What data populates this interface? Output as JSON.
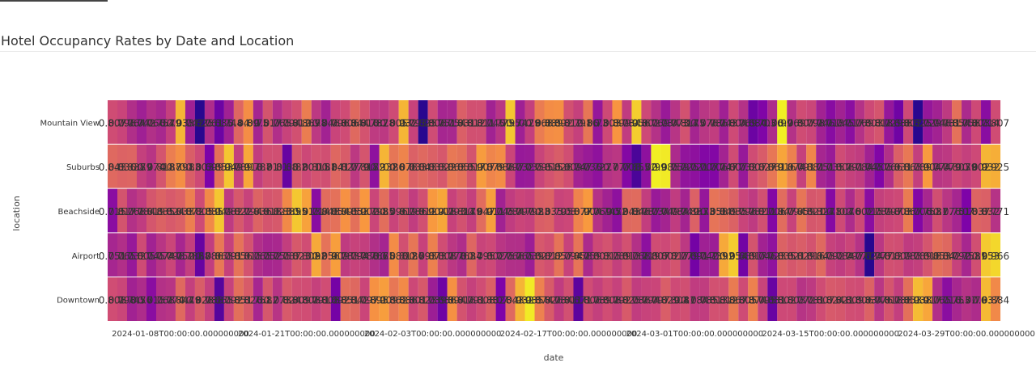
{
  "page": {
    "title": "Hotel Occupancy Rates by Date and Location"
  },
  "chart_data": {
    "type": "heatmap",
    "title": "Hotel Occupancy Rates by Date and Location",
    "xlabel": "date",
    "ylabel": "location",
    "colorscale": "plasma",
    "colors": [
      "#0d0887",
      "#7e03a8",
      "#cc4778",
      "#f89540",
      "#f0f921"
    ],
    "zlim": [
      0.6,
      1.0
    ],
    "grid": false,
    "legend": "none",
    "start_date": "2024-01-01",
    "end_date": "2024-03-31",
    "x_tick_labels": [
      "2024-01-08T00:00:00.000000000",
      "2024-01-21T00:00:00.000000000",
      "2024-02-03T00:00:00.000000000",
      "2024-02-17T00:00:00.000000000",
      "2024-03-01T00:00:00.000000000",
      "2024-03-15T00:00:00.000000000",
      "2024-03-29T00:00:00.000000000"
    ],
    "rows": [
      {
        "location": "Mountain View",
        "values": [
          0.807,
          0.796,
          0.764,
          0.742,
          0.766,
          0.754,
          0.79,
          0.933,
          0.742,
          0.625,
          0.761,
          0.685,
          0.744,
          0.84,
          0.89,
          0.75,
          0.817,
          0.765,
          0.794,
          0.812,
          0.869,
          0.78,
          0.746,
          0.796,
          0.806,
          0.844,
          0.816,
          0.782,
          0.78,
          0.805,
          0.932,
          0.793,
          0.625,
          0.806,
          0.751,
          0.754,
          0.831,
          0.812,
          0.811,
          0.745,
          0.775,
          0.95,
          0.742,
          0.79,
          0.868,
          0.889,
          0.892,
          0.812,
          0.791,
          0.86,
          0.73,
          0.803,
          0.899,
          0.784,
          0.956,
          0.802,
          0.769,
          0.734,
          0.773,
          0.814,
          0.75,
          0.776,
          0.786,
          0.743,
          0.804,
          0.769,
          0.684,
          0.703,
          0.76,
          0.99,
          0.769,
          0.807,
          0.798,
          0.746,
          0.713,
          0.745,
          0.717,
          0.769,
          0.803,
          0.818,
          0.729,
          0.688,
          0.802,
          0.625,
          0.729,
          0.746,
          0.781,
          0.854,
          0.758,
          0.803,
          0.714,
          0.807
        ]
      },
      {
        "location": "Suburbs",
        "values": [
          0.843,
          0.836,
          0.838,
          0.79,
          0.774,
          0.818,
          0.87,
          0.891,
          0.83,
          0.803,
          0.699,
          0.853,
          0.949,
          0.789,
          0.918,
          0.787,
          0.81,
          0.81,
          0.68,
          0.82,
          0.801,
          0.815,
          0.81,
          0.841,
          0.827,
          0.779,
          0.818,
          0.72,
          0.932,
          0.86,
          0.878,
          0.833,
          0.843,
          0.833,
          0.822,
          0.863,
          0.855,
          0.817,
          0.907,
          0.879,
          0.888,
          0.797,
          0.732,
          0.735,
          0.795,
          0.815,
          0.828,
          0.809,
          0.747,
          0.735,
          0.722,
          0.77,
          0.777,
          0.708,
          0.655,
          0.72,
          0.99,
          0.985,
          0.759,
          0.725,
          0.721,
          0.707,
          0.706,
          0.747,
          0.807,
          0.732,
          0.807,
          0.827,
          0.861,
          0.916,
          0.874,
          0.791,
          0.881,
          0.751,
          0.735,
          0.806,
          0.791,
          0.784,
          0.745,
          0.705,
          0.766,
          0.831,
          0.863,
          0.789,
          0.904,
          0.774,
          0.779,
          0.803,
          0.79,
          0.802,
          0.932,
          0.925
        ]
      },
      {
        "location": "Beachside",
        "values": [
          0.715,
          0.817,
          0.768,
          0.784,
          0.819,
          0.835,
          0.824,
          0.833,
          0.872,
          0.805,
          0.885,
          0.949,
          0.782,
          0.822,
          0.794,
          0.836,
          0.818,
          0.823,
          0.885,
          0.95,
          0.913,
          0.714,
          0.848,
          0.854,
          0.895,
          0.853,
          0.902,
          0.798,
          0.85,
          0.796,
          0.819,
          0.786,
          0.812,
          0.904,
          0.918,
          0.793,
          0.814,
          0.79,
          0.847,
          0.911,
          0.745,
          0.784,
          0.797,
          0.792,
          0.83,
          0.835,
          0.795,
          0.8,
          0.877,
          0.904,
          0.769,
          0.745,
          0.72,
          0.843,
          0.846,
          0.787,
          0.734,
          0.749,
          0.784,
          0.749,
          0.833,
          0.73,
          0.858,
          0.849,
          0.835,
          0.796,
          0.782,
          0.811,
          0.706,
          0.847,
          0.794,
          0.859,
          0.821,
          0.824,
          0.71,
          0.804,
          0.76,
          0.802,
          0.715,
          0.789,
          0.797,
          0.803,
          0.867,
          0.706,
          0.753,
          0.81,
          0.776,
          0.751,
          0.7,
          0.837,
          0.832,
          0.771
        ]
      },
      {
        "location": "Airport",
        "values": [
          0.751,
          0.765,
          0.732,
          0.805,
          0.745,
          0.774,
          0.798,
          0.752,
          0.788,
          0.68,
          0.786,
          0.863,
          0.791,
          0.856,
          0.815,
          0.765,
          0.752,
          0.755,
          0.787,
          0.823,
          0.808,
          0.92,
          0.856,
          0.909,
          0.783,
          0.794,
          0.788,
          0.766,
          0.75,
          0.888,
          0.812,
          0.86,
          0.793,
          0.873,
          0.808,
          0.778,
          0.763,
          0.84,
          0.795,
          0.802,
          0.775,
          0.766,
          0.765,
          0.739,
          0.822,
          0.812,
          0.857,
          0.794,
          0.858,
          0.759,
          0.803,
          0.815,
          0.789,
          0.813,
          0.768,
          0.719,
          0.807,
          0.802,
          0.817,
          0.779,
          0.691,
          0.742,
          0.739,
          0.92,
          0.954,
          0.689,
          0.817,
          0.746,
          0.723,
          0.835,
          0.821,
          0.829,
          0.816,
          0.843,
          0.792,
          0.784,
          0.797,
          0.771,
          0.624,
          0.777,
          0.812,
          0.809,
          0.783,
          0.789,
          0.818,
          0.853,
          0.842,
          0.792,
          0.753,
          0.81,
          0.953,
          0.966
        ]
      },
      {
        "location": "Downtown",
        "values": [
          0.808,
          0.798,
          0.745,
          0.76,
          0.715,
          0.768,
          0.774,
          0.844,
          0.79,
          0.828,
          0.788,
          0.665,
          0.792,
          0.851,
          0.826,
          0.751,
          0.82,
          0.773,
          0.824,
          0.809,
          0.808,
          0.791,
          0.808,
          0.692,
          0.851,
          0.842,
          0.797,
          0.895,
          0.909,
          0.862,
          0.886,
          0.801,
          0.823,
          0.739,
          0.686,
          0.894,
          0.816,
          0.791,
          0.808,
          0.832,
          0.7,
          0.843,
          0.932,
          0.985,
          0.874,
          0.826,
          0.784,
          0.811,
          0.671,
          0.806,
          0.789,
          0.808,
          0.792,
          0.825,
          0.786,
          0.794,
          0.797,
          0.829,
          0.804,
          0.81,
          0.784,
          0.785,
          0.813,
          0.812,
          0.867,
          0.805,
          0.874,
          0.795,
          0.681,
          0.802,
          0.803,
          0.772,
          0.781,
          0.807,
          0.824,
          0.821,
          0.809,
          0.806,
          0.834,
          0.776,
          0.818,
          0.788,
          0.853,
          0.938,
          0.917,
          0.765,
          0.716,
          0.753,
          0.77,
          0.76,
          0.937,
          0.884
        ]
      }
    ]
  }
}
